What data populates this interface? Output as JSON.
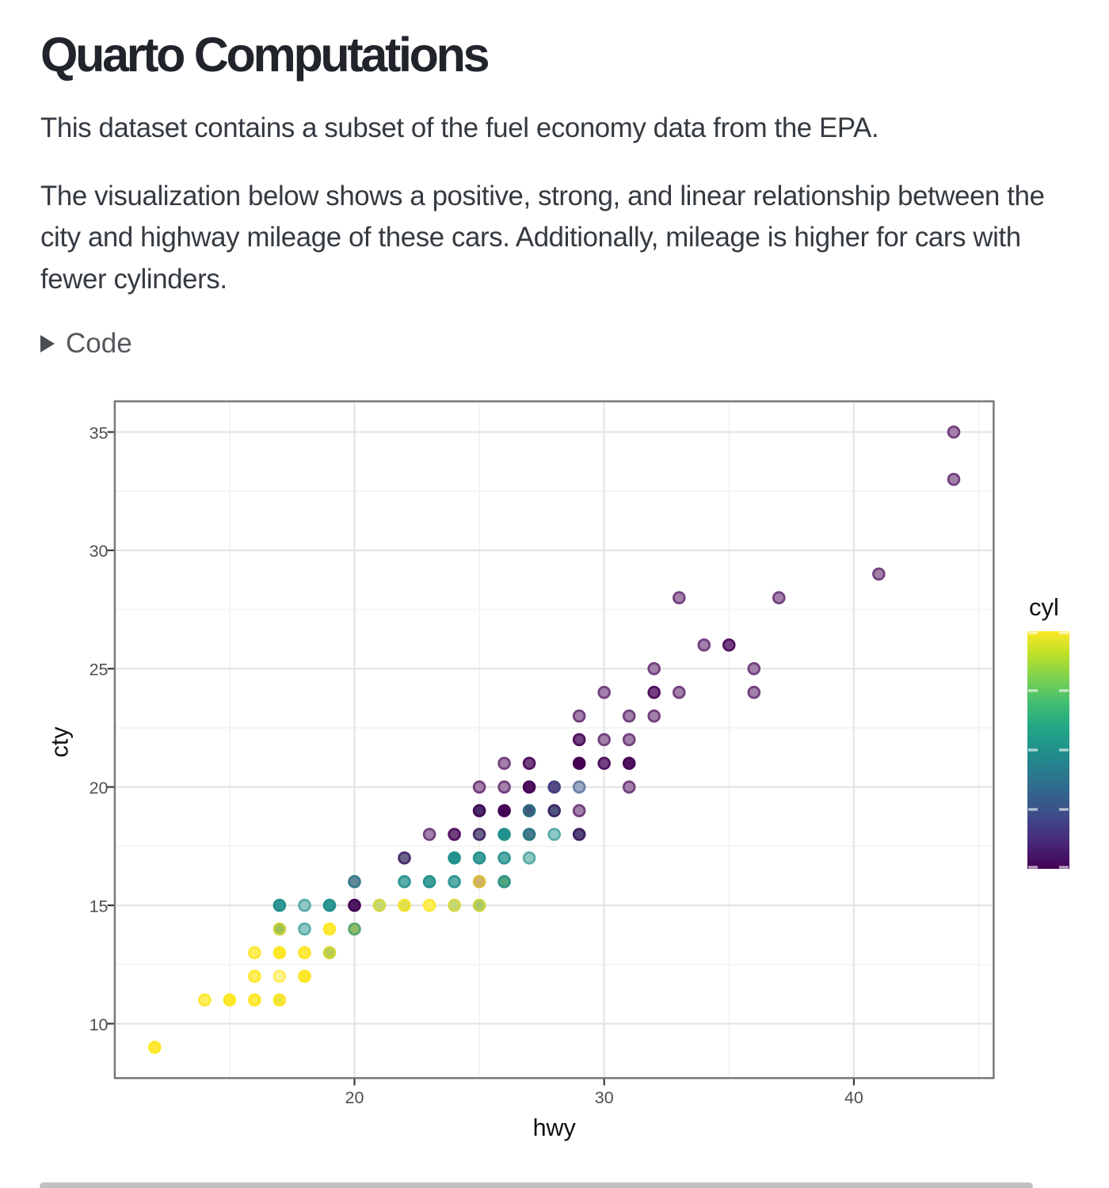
{
  "page": {
    "title": "Quarto Computations",
    "paragraphs": [
      "This dataset contains a subset of the fuel economy data from the EPA.",
      "The visualization below shows a positive, strong, and linear relationship between the city and highway mileage of these cars. Additionally, mileage is higher for cars with fewer cylinders."
    ],
    "code_toggle": {
      "label": "Code",
      "state": "collapsed",
      "marker_icon": "right-pointing-triangle"
    },
    "scrollbar": {
      "orientation": "horizontal",
      "thumb_color": "#C1C1C1"
    },
    "background_color": "#FFFFFF",
    "text_color": "#343A40",
    "title_color": "#21252B"
  },
  "chart_data": {
    "type": "scatter",
    "title": "",
    "xlabel": "hwy",
    "ylabel": "cty",
    "xlim": [
      10.4,
      45.6
    ],
    "ylim": [
      7.7,
      36.3
    ],
    "x_major_ticks": [
      20,
      30,
      40
    ],
    "x_minor_gridlines": [
      15,
      25,
      35,
      45
    ],
    "y_major_ticks": [
      35,
      30,
      25,
      20,
      15,
      10
    ],
    "y_minor_gridlines": [
      12.5,
      17.5,
      22.5,
      27.5,
      32.5
    ],
    "grid": "on",
    "point_alpha": 0.5,
    "panel": {
      "border_color": "#787878",
      "background": "#FFFFFF",
      "grid_major_color": "#E4E4E4",
      "grid_minor_color": "#F2F2F2",
      "tick_color": "#383838",
      "tick_label_color": "#4F4F4F",
      "axis_title_color": "#111111"
    },
    "legend": {
      "title": "cyl",
      "style": "colorbar",
      "position": "right",
      "limits": [
        4,
        8
      ],
      "breaks": [
        4,
        5,
        6,
        7,
        8
      ],
      "palette": "viridis",
      "gradient_stops": [
        "#440154",
        "#482475",
        "#414487",
        "#355F8D",
        "#2A788E",
        "#21908C",
        "#22A884",
        "#42BE71",
        "#7AD151",
        "#BBDF27",
        "#FDE725"
      ],
      "tick_mark_color": "rgba(255,255,255,0.62)"
    },
    "series_note": "each point = one distinct (hwy, cty) combination of the mpg fuel-economy dataset; cyl lists the stacked cylinder values drawn at that spot (draw order, alpha 0.5); fill/ring are the composited colors",
    "points": [
      {
        "hwy": 12,
        "cty": 9,
        "cyl": [
          8,
          8,
          8,
          8
        ],
        "n": 4,
        "fill": "#FDE833",
        "ring": "#FDE726"
      },
      {
        "hwy": 14,
        "cty": 11,
        "cyl": [
          8,
          8
        ],
        "n": 2,
        "fill": "#FEED5C",
        "ring": "#FDE833"
      },
      {
        "hwy": 15,
        "cty": 11,
        "cyl": [
          8,
          8,
          8,
          8,
          8,
          8
        ],
        "n": 6,
        "fill": "#FDE728",
        "ring": "#FDE725"
      },
      {
        "hwy": 16,
        "cty": 11,
        "cyl": [
          8,
          8,
          8
        ],
        "n": 3,
        "fill": "#FDEA40",
        "ring": "#FDE728"
      },
      {
        "hwy": 17,
        "cty": 11,
        "cyl": [
          6,
          8,
          8,
          8
        ],
        "n": 4,
        "fill": "#EFE339",
        "ring": "#FAE627"
      },
      {
        "hwy": 16,
        "cty": 12,
        "cyl": [
          8,
          8
        ],
        "n": 2,
        "fill": "#FEED5C",
        "ring": "#FDE833"
      },
      {
        "hwy": 17,
        "cty": 12,
        "cyl": [
          8
        ],
        "n": 1,
        "fill": "#FEF392",
        "ring": "#FEED5C"
      },
      {
        "hwy": 18,
        "cty": 12,
        "cyl": [
          8,
          8,
          8,
          8,
          8
        ],
        "n": 5,
        "fill": "#FDE82C",
        "ring": "#FDE725"
      },
      {
        "hwy": 16,
        "cty": 13,
        "cyl": [
          8,
          8
        ],
        "n": 2,
        "fill": "#FEED5C",
        "ring": "#FDE833"
      },
      {
        "hwy": 17,
        "cty": 13,
        "cyl": [
          8,
          8,
          8,
          8,
          8,
          8,
          8,
          8
        ],
        "n": 8,
        "fill": "#FDE726",
        "ring": "#FDE725"
      },
      {
        "hwy": 18,
        "cty": 13,
        "cyl": [
          8,
          8,
          8
        ],
        "n": 3,
        "fill": "#FDEA40",
        "ring": "#FDE728"
      },
      {
        "hwy": 19,
        "cty": 13,
        "cyl": [
          6,
          8,
          6,
          8
        ],
        "n": 4,
        "fill": "#B8CD53",
        "ring": "#D1D63A"
      },
      {
        "hwy": 17,
        "cty": 14,
        "cyl": [
          8,
          6,
          6,
          6,
          6,
          6,
          8,
          6,
          6,
          8
        ],
        "n": 10,
        "fill": "#9DC152",
        "ring": "#C9D23E"
      },
      {
        "hwy": 18,
        "cty": 14,
        "cyl": [
          6
        ],
        "n": 1,
        "fill": "#90C8C6",
        "ring": "#58ACA9"
      },
      {
        "hwy": 19,
        "cty": 14,
        "cyl": [
          8,
          8,
          8,
          8
        ],
        "n": 4,
        "fill": "#FDE833",
        "ring": "#FDE726"
      },
      {
        "hwy": 20,
        "cty": 14,
        "cyl": [
          8,
          8,
          8,
          6
        ],
        "n": 4,
        "fill": "#8FBD66",
        "ring": "#58A673"
      },
      {
        "hwy": 17,
        "cty": 15,
        "cyl": [
          6,
          6,
          6,
          6
        ],
        "n": 4,
        "fill": "#2F9793",
        "ring": "#22908C"
      },
      {
        "hwy": 18,
        "cty": 15,
        "cyl": [
          6
        ],
        "n": 1,
        "fill": "#90C8C6",
        "ring": "#58ACA9"
      },
      {
        "hwy": 19,
        "cty": 15,
        "cyl": [
          6,
          6,
          6,
          6
        ],
        "n": 4,
        "fill": "#2F9793",
        "ring": "#22908C"
      },
      {
        "hwy": 20,
        "cty": 15,
        "cyl": [
          6,
          4,
          4,
          4
        ],
        "n": 4,
        "fill": "#4E1A62",
        "ring": "#440455"
      },
      {
        "hwy": 21,
        "cty": 15,
        "cyl": [
          6,
          8
        ],
        "n": 2,
        "fill": "#C6D775",
        "ring": "#D4D846"
      },
      {
        "hwy": 22,
        "cty": 15,
        "cyl": [
          6,
          8,
          8
        ],
        "n": 3,
        "fill": "#E2DF4D",
        "ring": "#F3E32D"
      },
      {
        "hwy": 23,
        "cty": 15,
        "cyl": [
          8,
          8
        ],
        "n": 2,
        "fill": "#FEED5C",
        "ring": "#FDE833"
      },
      {
        "hwy": 24,
        "cty": 15,
        "cyl": [
          6,
          8
        ],
        "n": 2,
        "fill": "#C6D775",
        "ring": "#D4D846"
      },
      {
        "hwy": 25,
        "cty": 15,
        "cyl": [
          6,
          6,
          8
        ],
        "n": 3,
        "fill": "#ABC967",
        "ring": "#C9D341"
      },
      {
        "hwy": 20,
        "cty": 16,
        "cyl": [
          4,
          6
        ],
        "n": 2,
        "fill": "#61889B",
        "ring": "#357C89"
      },
      {
        "hwy": 22,
        "cty": 16,
        "cyl": [
          6,
          6
        ],
        "n": 2,
        "fill": "#58ACA9",
        "ring": "#2F9793"
      },
      {
        "hwy": 23,
        "cty": 16,
        "cyl": [
          6,
          6,
          6
        ],
        "n": 3,
        "fill": "#3D9E9A",
        "ring": "#24928E"
      },
      {
        "hwy": 24,
        "cty": 16,
        "cyl": [
          6,
          6
        ],
        "n": 2,
        "fill": "#58ACA9",
        "ring": "#2F9793"
      },
      {
        "hwy": 25,
        "cty": 16,
        "cyl": [
          4,
          8
        ],
        "n": 2,
        "fill": "#CFB467",
        "ring": "#DABD3B"
      },
      {
        "hwy": 26,
        "cty": 16,
        "cyl": [
          6,
          8,
          8,
          6,
          6
        ],
        "n": 5,
        "fill": "#51A47C",
        "ring": "#2E9586"
      },
      {
        "hwy": 22,
        "cty": 17,
        "cyl": [
          6,
          4
        ],
        "n": 2,
        "fill": "#6A648D",
        "ring": "#492C69"
      },
      {
        "hwy": 24,
        "cty": 17,
        "cyl": [
          6,
          6,
          6,
          6,
          6,
          6,
          6
        ],
        "n": 7,
        "fill": "#23918D",
        "ring": "#21908C"
      },
      {
        "hwy": 25,
        "cty": 17,
        "cyl": [
          6,
          6,
          6
        ],
        "n": 3,
        "fill": "#3D9E9A",
        "ring": "#24928E"
      },
      {
        "hwy": 26,
        "cty": 17,
        "cyl": [
          6,
          6
        ],
        "n": 2,
        "fill": "#58ACA9",
        "ring": "#2F9793"
      },
      {
        "hwy": 27,
        "cty": 17,
        "cyl": [
          6
        ],
        "n": 1,
        "fill": "#90C8C6",
        "ring": "#58ACA9"
      },
      {
        "hwy": 23,
        "cty": 18,
        "cyl": [
          4
        ],
        "n": 1,
        "fill": "#A280AA",
        "ring": "#73407F"
      },
      {
        "hwy": 24,
        "cty": 18,
        "cyl": [
          4,
          4
        ],
        "n": 2,
        "fill": "#73407F",
        "ring": "#50115F"
      },
      {
        "hwy": 25,
        "cty": 18,
        "cyl": [
          6,
          4
        ],
        "n": 2,
        "fill": "#6A648D",
        "ring": "#492C69"
      },
      {
        "hwy": 26,
        "cty": 18,
        "cyl": [
          6,
          6,
          4,
          6,
          6,
          6,
          6,
          6,
          6,
          6
        ],
        "n": 10,
        "fill": "#21908C",
        "ring": "#21908C"
      },
      {
        "hwy": 27,
        "cty": 18,
        "cyl": [
          6,
          4,
          6
        ],
        "n": 3,
        "fill": "#467A8C",
        "ring": "#2B7783"
      },
      {
        "hwy": 28,
        "cty": 18,
        "cyl": [
          6
        ],
        "n": 1,
        "fill": "#90C8C6",
        "ring": "#58ACA9"
      },
      {
        "hwy": 29,
        "cty": 18,
        "cyl": [
          4,
          6,
          4
        ],
        "n": 3,
        "fill": "#534477",
        "ring": "#402061"
      },
      {
        "hwy": 25,
        "cty": 19,
        "cyl": [
          6,
          6,
          4,
          4
        ],
        "n": 4,
        "fill": "#492C69",
        "ring": "#430A58"
      },
      {
        "hwy": 26,
        "cty": 19,
        "cyl": [
          4,
          6,
          4,
          4,
          4,
          4,
          4,
          4
        ],
        "n": 8,
        "fill": "#440355",
        "ring": "#440154"
      },
      {
        "hwy": 27,
        "cty": 19,
        "cyl": [
          4,
          4,
          4,
          6
        ],
        "n": 4,
        "fill": "#3E587B",
        "ring": "#2A6D7F"
      },
      {
        "hwy": 28,
        "cty": 19,
        "cyl": [
          6,
          6,
          4
        ],
        "n": 3,
        "fill": "#4E567E",
        "ring": "#3F2664"
      },
      {
        "hwy": 29,
        "cty": 19,
        "cyl": [
          4
        ],
        "n": 1,
        "fill": "#A280AA",
        "ring": "#73407F"
      },
      {
        "hwy": 25,
        "cty": 20,
        "cyl": [
          4
        ],
        "n": 1,
        "fill": "#A280AA",
        "ring": "#73407F"
      },
      {
        "hwy": 26,
        "cty": 20,
        "cyl": [
          4
        ],
        "n": 1,
        "fill": "#A280AA",
        "ring": "#73407F"
      },
      {
        "hwy": 27,
        "cty": 20,
        "cyl": [
          4,
          4,
          4,
          4
        ],
        "n": 4,
        "fill": "#50115F",
        "ring": "#450255"
      },
      {
        "hwy": 28,
        "cty": 20,
        "cyl": [
          4,
          4,
          5
        ],
        "n": 3,
        "fill": "#574985",
        "ring": "#404280"
      },
      {
        "hwy": 29,
        "cty": 20,
        "cyl": [
          5
        ],
        "n": 1,
        "fill": "#9DA8C5",
        "ring": "#6C7DA8"
      },
      {
        "hwy": 31,
        "cty": 20,
        "cyl": [
          4
        ],
        "n": 1,
        "fill": "#A280AA",
        "ring": "#73407F"
      },
      {
        "hwy": 26,
        "cty": 21,
        "cyl": [
          4
        ],
        "n": 1,
        "fill": "#A280AA",
        "ring": "#73407F"
      },
      {
        "hwy": 27,
        "cty": 21,
        "cyl": [
          4,
          4
        ],
        "n": 2,
        "fill": "#73407F",
        "ring": "#50115F"
      },
      {
        "hwy": 29,
        "cty": 21,
        "cyl": [
          4,
          4,
          4,
          4,
          4,
          4,
          4,
          4,
          4,
          4,
          4
        ],
        "n": 11,
        "fill": "#440154",
        "ring": "#440154"
      },
      {
        "hwy": 30,
        "cty": 21,
        "cyl": [
          4,
          4
        ],
        "n": 2,
        "fill": "#73407F",
        "ring": "#50115F"
      },
      {
        "hwy": 31,
        "cty": 21,
        "cyl": [
          4,
          4,
          4,
          4
        ],
        "n": 4,
        "fill": "#50115F",
        "ring": "#450255"
      },
      {
        "hwy": 29,
        "cty": 22,
        "cyl": [
          4,
          4
        ],
        "n": 2,
        "fill": "#73407F",
        "ring": "#50115F"
      },
      {
        "hwy": 30,
        "cty": 22,
        "cyl": [
          4
        ],
        "n": 1,
        "fill": "#A280AA",
        "ring": "#73407F"
      },
      {
        "hwy": 31,
        "cty": 22,
        "cyl": [
          4
        ],
        "n": 1,
        "fill": "#A280AA",
        "ring": "#73407F"
      },
      {
        "hwy": 29,
        "cty": 23,
        "cyl": [
          4
        ],
        "n": 1,
        "fill": "#A280AA",
        "ring": "#73407F"
      },
      {
        "hwy": 31,
        "cty": 23,
        "cyl": [
          4
        ],
        "n": 1,
        "fill": "#A280AA",
        "ring": "#73407F"
      },
      {
        "hwy": 32,
        "cty": 23,
        "cyl": [
          4
        ],
        "n": 1,
        "fill": "#A280AA",
        "ring": "#73407F"
      },
      {
        "hwy": 30,
        "cty": 24,
        "cyl": [
          4
        ],
        "n": 1,
        "fill": "#A280AA",
        "ring": "#73407F"
      },
      {
        "hwy": 32,
        "cty": 24,
        "cyl": [
          4,
          4
        ],
        "n": 2,
        "fill": "#73407F",
        "ring": "#50115F"
      },
      {
        "hwy": 33,
        "cty": 24,
        "cyl": [
          4
        ],
        "n": 1,
        "fill": "#A280AA",
        "ring": "#73407F"
      },
      {
        "hwy": 36,
        "cty": 24,
        "cyl": [
          4
        ],
        "n": 1,
        "fill": "#A280AA",
        "ring": "#73407F"
      },
      {
        "hwy": 32,
        "cty": 25,
        "cyl": [
          4
        ],
        "n": 1,
        "fill": "#A280AA",
        "ring": "#73407F"
      },
      {
        "hwy": 36,
        "cty": 25,
        "cyl": [
          4
        ],
        "n": 1,
        "fill": "#A280AA",
        "ring": "#73407F"
      },
      {
        "hwy": 34,
        "cty": 26,
        "cyl": [
          4
        ],
        "n": 1,
        "fill": "#A280AA",
        "ring": "#73407F"
      },
      {
        "hwy": 35,
        "cty": 26,
        "cyl": [
          4,
          4
        ],
        "n": 2,
        "fill": "#73407F",
        "ring": "#50115F"
      },
      {
        "hwy": 33,
        "cty": 28,
        "cyl": [
          4
        ],
        "n": 1,
        "fill": "#A280AA",
        "ring": "#73407F"
      },
      {
        "hwy": 37,
        "cty": 28,
        "cyl": [
          4
        ],
        "n": 1,
        "fill": "#A280AA",
        "ring": "#73407F"
      },
      {
        "hwy": 41,
        "cty": 29,
        "cyl": [
          4
        ],
        "n": 1,
        "fill": "#A280AA",
        "ring": "#73407F"
      },
      {
        "hwy": 44,
        "cty": 33,
        "cyl": [
          4
        ],
        "n": 1,
        "fill": "#A280AA",
        "ring": "#73407F"
      },
      {
        "hwy": 44,
        "cty": 35,
        "cyl": [
          4
        ],
        "n": 1,
        "fill": "#A280AA",
        "ring": "#73407F"
      }
    ]
  }
}
